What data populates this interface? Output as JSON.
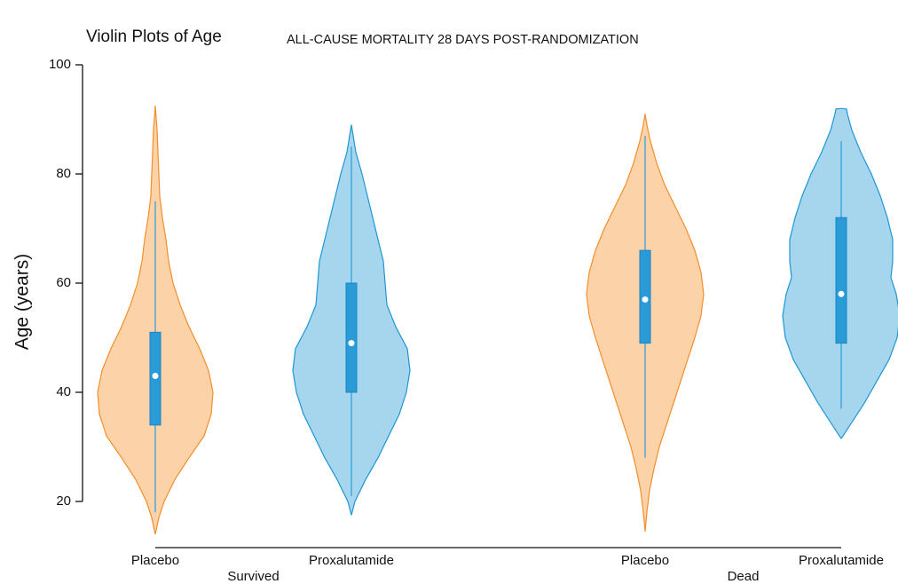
{
  "chart_data": {
    "type": "violin",
    "title": "Violin Plots of Age",
    "subtitle": "ALL-CAUSE MORTALITY 28 DAYS POST-RANDOMIZATION",
    "y_label": "Age (years)",
    "ylim": [
      20,
      100
    ],
    "yticks": [
      20,
      40,
      60,
      80,
      100
    ],
    "box_color": "#2b9bd8",
    "groups": [
      {
        "name": "Survived",
        "violins": [
          {
            "name": "Placebo",
            "color": "#f28e2b",
            "fill": "#fcd3a8",
            "whisker_low": 18,
            "q1": 34,
            "median": 43,
            "q3": 51,
            "whisker_high": 75,
            "kde_age": [
              14,
              17,
              20,
              24,
              28,
              32,
              36,
              40,
              44,
              48,
              52,
              56,
              60,
              64,
              68,
              72,
              76,
              80,
              84,
              88,
              92.5
            ],
            "kde_width": [
              0,
              4,
              10,
              22,
              38,
              55,
              63,
              65,
              60,
              50,
              38,
              28,
              20,
              15,
              12,
              8,
              5,
              4,
              3,
              2,
              0
            ]
          },
          {
            "name": "Proxalutamide",
            "color": "#1f97d4",
            "fill": "#a6d5ee",
            "whisker_low": 21,
            "q1": 40,
            "median": 49,
            "q3": 60,
            "whisker_high": 85,
            "kde_age": [
              17.5,
              20,
              24,
              28,
              32,
              36,
              40,
              44,
              48,
              52,
              56,
              60,
              64,
              68,
              72,
              76,
              80,
              84,
              87,
              89
            ],
            "kde_width": [
              0,
              4,
              16,
              30,
              42,
              54,
              62,
              66,
              63,
              50,
              40,
              38,
              36,
              30,
              24,
              18,
              12,
              5,
              2,
              0
            ]
          }
        ]
      },
      {
        "name": "Dead",
        "violins": [
          {
            "name": "Placebo",
            "color": "#f28e2b",
            "fill": "#fcd3a8",
            "whisker_low": 28,
            "q1": 49,
            "median": 57,
            "q3": 66,
            "whisker_high": 87,
            "kde_age": [
              14.5,
              18,
              22,
              26,
              30,
              34,
              38,
              42,
              46,
              50,
              54,
              58,
              62,
              66,
              70,
              74,
              78,
              82,
              86,
              89,
              91
            ],
            "kde_width": [
              0,
              2,
              5,
              10,
              16,
              24,
              32,
              40,
              48,
              56,
              63,
              66,
              63,
              56,
              46,
              34,
              22,
              13,
              6,
              2,
              0
            ]
          },
          {
            "name": "Proxalutamide",
            "color": "#1f97d4",
            "fill": "#a6d5ee",
            "whisker_low": 37,
            "q1": 49,
            "median": 58,
            "q3": 72,
            "whisker_high": 86,
            "kde_age": [
              31.5,
              34,
              38,
              42,
              46,
              50,
              54,
              58,
              61,
              64,
              68,
              72,
              76,
              80,
              84,
              88,
              91,
              91.9,
              92
            ],
            "kde_width": [
              0,
              10,
              26,
              40,
              54,
              63,
              66,
              62,
              56,
              58,
              58,
              52,
              44,
              34,
              22,
              12,
              7,
              6,
              0
            ]
          }
        ]
      }
    ]
  }
}
